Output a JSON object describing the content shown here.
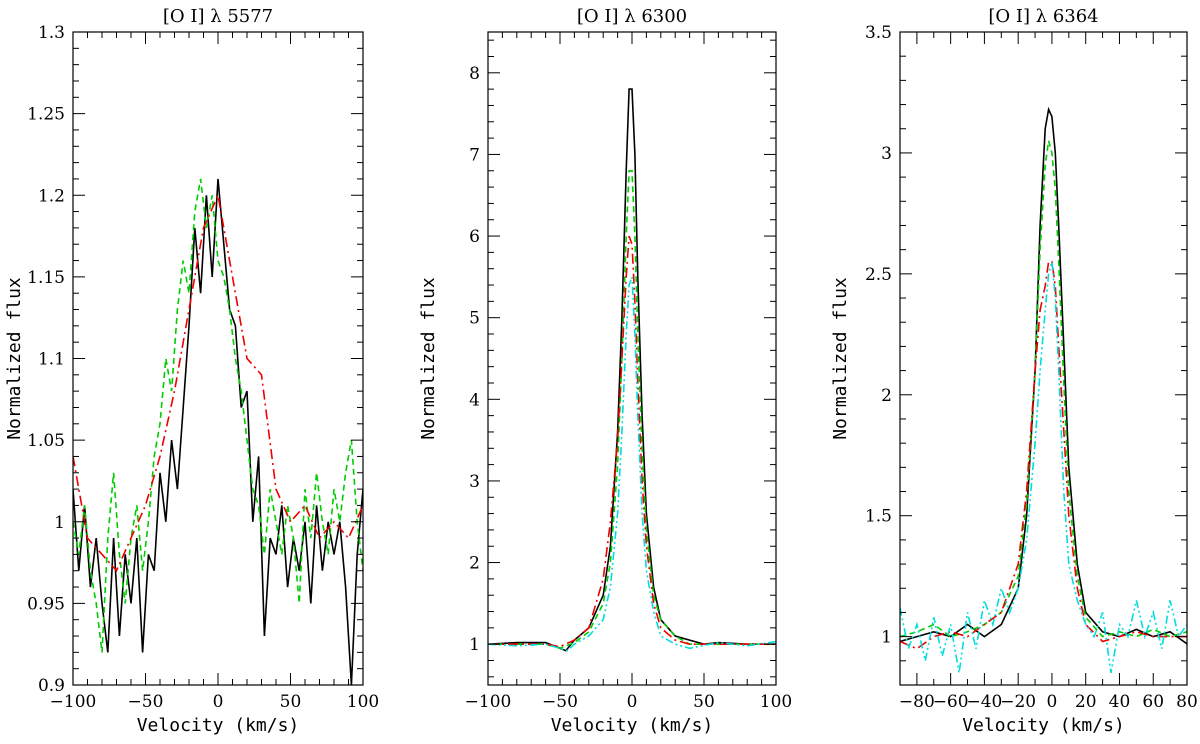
{
  "chart_data": [
    {
      "type": "line",
      "title": "[O I] λ 5577",
      "xlabel": "Velocity (km/s)",
      "ylabel": "Normalized flux",
      "xlim": [
        -100,
        100
      ],
      "ylim": [
        0.9,
        1.3
      ],
      "xticks": [
        -100,
        -50,
        0,
        50,
        100
      ],
      "xtick_labels": [
        "−100",
        "−50",
        "0",
        "50",
        "100"
      ],
      "yticks": [
        0.9,
        0.95,
        1,
        1.05,
        1.1,
        1.15,
        1.2,
        1.25,
        1.3
      ],
      "ytick_labels": [
        "0.9",
        "0.95",
        "1",
        "1.05",
        "1.1",
        "1.15",
        "1.2",
        "1.25",
        "1.3"
      ],
      "grid": false,
      "series": [
        {
          "name": "black",
          "color": "#000000",
          "dash": "",
          "x": [
            -100,
            -96,
            -92,
            -88,
            -84,
            -80,
            -76,
            -72,
            -68,
            -64,
            -60,
            -56,
            -52,
            -48,
            -44,
            -40,
            -36,
            -32,
            -28,
            -24,
            -20,
            -16,
            -12,
            -8,
            -4,
            0,
            4,
            8,
            12,
            16,
            20,
            24,
            28,
            32,
            36,
            40,
            44,
            48,
            52,
            56,
            60,
            64,
            68,
            72,
            76,
            80,
            84,
            88,
            92,
            96,
            100
          ],
          "y": [
            1.02,
            0.97,
            1.01,
            0.96,
            0.99,
            0.95,
            0.92,
            0.99,
            0.93,
            0.98,
            0.95,
            0.99,
            0.92,
            0.98,
            0.97,
            1.03,
            1.0,
            1.05,
            1.02,
            1.07,
            1.12,
            1.18,
            1.14,
            1.2,
            1.15,
            1.21,
            1.17,
            1.13,
            1.12,
            1.07,
            1.08,
            1.0,
            1.04,
            0.93,
            0.99,
            0.98,
            1.01,
            0.96,
            0.99,
            0.97,
            1.0,
            0.95,
            1.01,
            0.97,
            1.0,
            0.98,
            1.0,
            0.96,
            0.9,
            0.98,
            1.02
          ]
        },
        {
          "name": "green",
          "color": "#00cc00",
          "dash": "6,4",
          "x": [
            -100,
            -96,
            -92,
            -88,
            -84,
            -80,
            -76,
            -72,
            -68,
            -64,
            -60,
            -56,
            -52,
            -48,
            -44,
            -40,
            -36,
            -32,
            -28,
            -24,
            -20,
            -16,
            -12,
            -8,
            -4,
            0,
            4,
            8,
            12,
            16,
            20,
            24,
            28,
            32,
            36,
            40,
            44,
            48,
            52,
            56,
            60,
            64,
            68,
            72,
            76,
            80,
            84,
            88,
            92,
            96,
            100
          ],
          "y": [
            1.0,
            0.98,
            1.01,
            0.97,
            0.95,
            0.92,
            0.99,
            1.03,
            0.98,
            0.95,
            0.99,
            1.01,
            0.97,
            1.0,
            1.04,
            1.06,
            1.1,
            1.08,
            1.13,
            1.16,
            1.14,
            1.19,
            1.21,
            1.18,
            1.2,
            1.16,
            1.15,
            1.13,
            1.1,
            1.08,
            1.05,
            1.02,
            1.01,
            0.98,
            1.02,
            1.0,
            0.98,
            1.01,
            0.99,
            0.95,
            1.02,
            0.99,
            1.03,
            1.0,
            0.98,
            1.02,
            1.0,
            1.03,
            1.05,
            1.0,
            0.97
          ]
        },
        {
          "name": "red",
          "color": "#ee0000",
          "dash": "10,4,2,4",
          "x": [
            -100,
            -90,
            -80,
            -70,
            -60,
            -50,
            -40,
            -30,
            -20,
            -10,
            0,
            10,
            20,
            30,
            40,
            50,
            60,
            70,
            80,
            90,
            100
          ],
          "y": [
            1.04,
            0.99,
            0.98,
            0.97,
            0.99,
            1.01,
            1.04,
            1.08,
            1.13,
            1.18,
            1.2,
            1.15,
            1.1,
            1.09,
            1.02,
            1.0,
            1.01,
            0.99,
            1.0,
            0.99,
            1.01
          ]
        }
      ]
    },
    {
      "type": "line",
      "title": "[O I] λ 6300",
      "xlabel": "Velocity (km/s)",
      "ylabel": "Normalized flux",
      "xlim": [
        -100,
        100
      ],
      "ylim": [
        0.5,
        8.5
      ],
      "xticks": [
        -100,
        -50,
        0,
        50,
        100
      ],
      "xtick_labels": [
        "−100",
        "−50",
        "0",
        "50",
        "100"
      ],
      "yticks": [
        1,
        2,
        3,
        4,
        5,
        6,
        7,
        8
      ],
      "ytick_labels": [
        "1",
        "2",
        "3",
        "4",
        "5",
        "6",
        "7",
        "8"
      ],
      "grid": false,
      "series": [
        {
          "name": "black",
          "color": "#000000",
          "dash": "",
          "x": [
            -100,
            -80,
            -60,
            -50,
            -46,
            -40,
            -30,
            -20,
            -15,
            -10,
            -7,
            -4,
            -2,
            0,
            2,
            4,
            7,
            10,
            15,
            20,
            30,
            40,
            50,
            60,
            80,
            100
          ],
          "y": [
            1.0,
            1.02,
            1.02,
            0.95,
            0.92,
            1.05,
            1.2,
            1.6,
            2.2,
            3.6,
            5.0,
            6.8,
            7.8,
            7.8,
            7.0,
            5.5,
            3.8,
            2.6,
            1.7,
            1.3,
            1.1,
            1.05,
            1.0,
            1.02,
            1.0,
            1.0
          ]
        },
        {
          "name": "green",
          "color": "#00cc00",
          "dash": "6,4",
          "x": [
            -100,
            -80,
            -60,
            -50,
            -40,
            -30,
            -20,
            -15,
            -10,
            -7,
            -4,
            -2,
            0,
            2,
            4,
            7,
            10,
            15,
            20,
            30,
            40,
            60,
            80,
            100
          ],
          "y": [
            1.0,
            1.0,
            1.0,
            0.95,
            1.02,
            1.15,
            1.5,
            2.0,
            3.2,
            4.5,
            6.0,
            6.8,
            6.8,
            6.0,
            4.8,
            3.4,
            2.4,
            1.6,
            1.3,
            1.1,
            1.0,
            1.0,
            1.0,
            1.0
          ]
        },
        {
          "name": "red",
          "color": "#ee0000",
          "dash": "10,4,2,4",
          "x": [
            -100,
            -80,
            -60,
            -50,
            -40,
            -30,
            -20,
            -15,
            -10,
            -7,
            -4,
            -2,
            0,
            2,
            4,
            7,
            10,
            15,
            20,
            30,
            40,
            60,
            80,
            100
          ],
          "y": [
            1.0,
            1.0,
            1.0,
            0.97,
            1.05,
            1.2,
            1.8,
            2.5,
            3.5,
            4.5,
            5.5,
            6.0,
            5.9,
            5.2,
            4.2,
            3.0,
            2.2,
            1.5,
            1.2,
            1.05,
            1.0,
            1.0,
            1.0,
            1.0
          ]
        },
        {
          "name": "cyan",
          "color": "#00dddd",
          "dash": "8,3,2,3,2,3",
          "x": [
            -100,
            -80,
            -60,
            -50,
            -45,
            -40,
            -30,
            -20,
            -15,
            -10,
            -7,
            -4,
            -2,
            0,
            2,
            4,
            7,
            10,
            15,
            20,
            30,
            40,
            60,
            80,
            100
          ],
          "y": [
            1.0,
            0.98,
            1.0,
            0.95,
            0.92,
            1.0,
            1.1,
            1.3,
            1.7,
            2.6,
            3.6,
            4.8,
            5.4,
            5.5,
            4.8,
            3.8,
            2.6,
            1.9,
            1.4,
            1.1,
            1.0,
            0.95,
            1.02,
            0.98,
            1.03
          ]
        }
      ]
    },
    {
      "type": "line",
      "title": "[O I] λ 6364",
      "xlabel": "Velocity (km/s)",
      "ylabel": "Normalized flux",
      "xlim": [
        -90,
        80
      ],
      "ylim": [
        0.8,
        3.5
      ],
      "xticks": [
        -80,
        -60,
        -40,
        -20,
        0,
        20,
        40,
        60,
        80
      ],
      "xtick_labels": [
        "−80",
        "−60",
        "−40",
        "−20",
        "0",
        "20",
        "40",
        "60",
        "80"
      ],
      "yticks": [
        1,
        1.5,
        2,
        2.5,
        3,
        3.5
      ],
      "ytick_labels": [
        "1",
        "1.5",
        "2",
        "2.5",
        "3",
        "3.5"
      ],
      "grid": false,
      "series": [
        {
          "name": "black",
          "color": "#000000",
          "dash": "",
          "x": [
            -90,
            -80,
            -70,
            -60,
            -50,
            -40,
            -30,
            -20,
            -15,
            -10,
            -7,
            -4,
            -2,
            0,
            2,
            4,
            7,
            10,
            15,
            20,
            30,
            40,
            50,
            60,
            70,
            80
          ],
          "y": [
            0.98,
            1.0,
            1.02,
            1.0,
            1.05,
            1.0,
            1.05,
            1.2,
            1.5,
            2.1,
            2.7,
            3.1,
            3.18,
            3.15,
            3.0,
            2.7,
            2.2,
            1.7,
            1.3,
            1.1,
            1.02,
            1.0,
            1.03,
            1.0,
            1.02,
            0.97
          ]
        },
        {
          "name": "green",
          "color": "#00cc00",
          "dash": "6,4",
          "x": [
            -90,
            -80,
            -70,
            -60,
            -50,
            -40,
            -30,
            -20,
            -15,
            -10,
            -7,
            -4,
            -2,
            0,
            2,
            4,
            7,
            10,
            15,
            20,
            30,
            40,
            50,
            60,
            70,
            80
          ],
          "y": [
            1.0,
            1.02,
            1.05,
            1.0,
            1.02,
            1.05,
            1.1,
            1.25,
            1.55,
            2.1,
            2.6,
            2.95,
            3.05,
            3.0,
            2.85,
            2.55,
            2.05,
            1.6,
            1.25,
            1.08,
            1.0,
            1.02,
            1.0,
            1.03,
            1.0,
            1.02
          ]
        },
        {
          "name": "red",
          "color": "#ee0000",
          "dash": "10,4,2,4",
          "x": [
            -90,
            -80,
            -70,
            -60,
            -50,
            -40,
            -30,
            -20,
            -15,
            -10,
            -7,
            -4,
            -2,
            0,
            2,
            4,
            7,
            10,
            15,
            20,
            30,
            40,
            50,
            60,
            70,
            80
          ],
          "y": [
            0.98,
            0.95,
            1.0,
            1.02,
            1.0,
            1.05,
            1.1,
            1.3,
            1.6,
            2.1,
            2.35,
            2.45,
            2.55,
            2.55,
            2.45,
            2.2,
            1.85,
            1.5,
            1.2,
            1.05,
            0.98,
            1.0,
            1.02,
            1.0,
            1.0,
            1.0
          ]
        },
        {
          "name": "cyan",
          "color": "#00dddd",
          "dash": "8,3,2,3,2,3",
          "x": [
            -90,
            -85,
            -80,
            -75,
            -70,
            -65,
            -60,
            -55,
            -50,
            -45,
            -40,
            -35,
            -30,
            -25,
            -20,
            -15,
            -10,
            -7,
            -4,
            -2,
            0,
            2,
            4,
            7,
            10,
            15,
            20,
            25,
            30,
            35,
            40,
            45,
            50,
            55,
            60,
            65,
            70,
            75,
            80
          ],
          "y": [
            1.12,
            0.95,
            1.05,
            0.9,
            1.08,
            0.92,
            1.05,
            0.85,
            1.1,
            0.95,
            1.15,
            1.05,
            1.2,
            1.1,
            1.2,
            1.4,
            1.8,
            2.1,
            2.35,
            2.5,
            2.55,
            2.4,
            2.1,
            1.6,
            1.3,
            1.15,
            1.05,
            1.0,
            1.1,
            0.85,
            1.05,
            1.0,
            1.15,
            1.0,
            1.1,
            0.95,
            1.15,
            1.0,
            1.05
          ]
        }
      ]
    }
  ]
}
